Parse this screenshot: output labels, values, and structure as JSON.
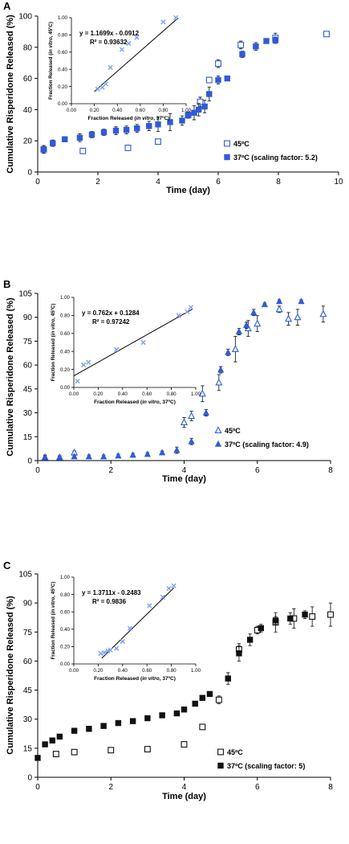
{
  "colors": {
    "blue": "#2f5bd9",
    "light_blue": "#7aa2ee",
    "black": "#111111",
    "gray": "#777777"
  },
  "chart_data": [
    {
      "panel_label": "A",
      "type": "scatter",
      "xlabel": "Time (day)",
      "ylabel": "Cumulative Risperidone Released (%)",
      "xlim": [
        0,
        10
      ],
      "ylim": [
        0,
        100
      ],
      "xticks": [
        0,
        2,
        4,
        6,
        8,
        10
      ],
      "yticks": [
        0,
        20,
        40,
        60,
        80,
        100
      ],
      "legend_position": "bottom-right",
      "series": [
        {
          "name": "45ºC",
          "style": "open-square",
          "color": "#2f5bd9",
          "x": [
            0.2,
            1.5,
            3.0,
            4.0,
            5.0,
            5.4,
            5.7,
            6.0,
            6.75,
            7.9,
            9.6
          ],
          "y": [
            14.5,
            13.5,
            15.5,
            19.5,
            36.5,
            45.0,
            59.0,
            69.5,
            81.5,
            86.0,
            88.5
          ],
          "err": [
            2.5,
            1.0,
            1.0,
            1.0,
            2.0,
            3.0,
            1.0,
            2.5,
            2.5,
            3.0,
            1.5
          ]
        },
        {
          "name": "37ºC (scaling factor: 5.2)",
          "style": "filled-square",
          "color": "#2f5bd9",
          "x": [
            0.2,
            0.5,
            0.9,
            1.4,
            1.8,
            2.2,
            2.6,
            2.95,
            3.3,
            3.7,
            4.0,
            4.4,
            4.8,
            5.0,
            5.2,
            5.35,
            5.55,
            5.7,
            6.0,
            6.3,
            6.8,
            7.25,
            7.6,
            7.9
          ],
          "y": [
            14.5,
            18.5,
            21.0,
            22.0,
            24.0,
            25.5,
            26.5,
            27.0,
            28.0,
            29.5,
            30.5,
            32.0,
            33.0,
            36.5,
            38.0,
            40.0,
            42.0,
            50.0,
            59.0,
            60.0,
            75.5,
            80.5,
            84.0,
            84.5
          ],
          "err": [
            2.5,
            2.0,
            1.5,
            2.5,
            2.0,
            2.0,
            2.5,
            2.5,
            2.5,
            3.0,
            4.5,
            5.5,
            3.0,
            2.0,
            4.5,
            4.0,
            4.0,
            4.5,
            2.5,
            1.5,
            2.0,
            2.5,
            1.0,
            2.0
          ]
        }
      ],
      "inset": {
        "type": "scatter",
        "xlabel_parts": [
          "Fraction Released (",
          "in vitro",
          ", 37ºC)"
        ],
        "ylabel_parts": [
          "Fraction Released (",
          "in vitro",
          ", 45ºC)"
        ],
        "xlim": [
          0,
          1
        ],
        "ylim": [
          0,
          1
        ],
        "xticks": [
          "0.00",
          "0.20",
          "0.40",
          "0.60",
          "0.80",
          "1.00"
        ],
        "yticks": [
          "0.00",
          "0.20",
          "0.40",
          "0.60",
          "0.80",
          "1.00"
        ],
        "equation": "y = 1.1699x - 0.0912",
        "r_squared": "R² = 0.93632",
        "slope": 1.1699,
        "intercept": -0.0912,
        "fit_x_range": [
          0.2,
          0.93
        ],
        "x": [
          0.23,
          0.27,
          0.3,
          0.34,
          0.44,
          0.5,
          0.57,
          0.8,
          0.91
        ],
        "y": [
          0.17,
          0.19,
          0.23,
          0.42,
          0.63,
          0.7,
          0.77,
          0.95,
          1.0
        ]
      }
    },
    {
      "panel_label": "B",
      "type": "scatter",
      "xlabel": "Time (day)",
      "ylabel": "Cumulative Risperidone Released (%)",
      "xlim": [
        0,
        8
      ],
      "ylim": [
        0,
        105
      ],
      "xticks": [
        0,
        2,
        4,
        6,
        8
      ],
      "yticks": [
        0,
        15,
        30,
        45,
        60,
        75,
        90,
        105
      ],
      "legend_position": "bottom-right",
      "series": [
        {
          "name": "45ºC",
          "style": "open-triangle",
          "color": "#2f5bd9",
          "x": [
            0.2,
            0.6,
            1.0,
            4.0,
            4.2,
            4.5,
            4.95,
            5.4,
            5.75,
            6.0,
            6.6,
            6.85,
            7.1,
            7.8
          ],
          "y": [
            2.0,
            2.0,
            5.0,
            24.0,
            28.0,
            42.0,
            49.0,
            70.0,
            83.0,
            86.0,
            95.0,
            89.0,
            90.0,
            92.0
          ],
          "err": [
            1.0,
            1.0,
            1.0,
            3.0,
            3.0,
            5.0,
            5.0,
            8.0,
            5.0,
            5.0,
            2.0,
            4.0,
            5.0,
            5.0
          ]
        },
        {
          "name": "37ºC (scaling factor: 4.9)",
          "style": "filled-triangle",
          "color": "#2f5bd9",
          "x": [
            0.2,
            0.6,
            1.0,
            1.4,
            1.8,
            2.2,
            2.6,
            3.0,
            3.4,
            3.8,
            4.2,
            4.6,
            5.0,
            5.2,
            5.5,
            5.7,
            5.9,
            6.2,
            6.6,
            7.2
          ],
          "y": [
            2.0,
            2.0,
            2.5,
            2.5,
            2.5,
            3.0,
            3.5,
            4.0,
            5.0,
            6.5,
            12.0,
            30.0,
            57.0,
            68.0,
            81.0,
            85.0,
            93.0,
            98.0,
            100.0,
            100.0
          ],
          "err": [
            1.5,
            1.0,
            1.0,
            1.0,
            1.0,
            1.0,
            1.0,
            1.0,
            1.0,
            2.0,
            2.0,
            2.0,
            2.0,
            2.0,
            2.0,
            2.0,
            2.0,
            1.0,
            1.0,
            1.0
          ]
        }
      ],
      "inset": {
        "type": "scatter",
        "xlabel_parts": [
          "Fraction Released (",
          "in vitro",
          ", 37ºC)"
        ],
        "ylabel_parts": [
          "Fraction Released (",
          "in vitro",
          ", 45ºC)"
        ],
        "xlim": [
          0,
          1
        ],
        "ylim": [
          0,
          1
        ],
        "xticks": [
          "0.00",
          "0.20",
          "0.40",
          "0.60",
          "0.80",
          "1.00"
        ],
        "yticks": [
          "0.00",
          "0.20",
          "0.40",
          "0.60",
          "0.80",
          "1.00"
        ],
        "equation": "y = 0.762x + 0.1284",
        "r_squared": "R² = 0.97242",
        "slope": 0.762,
        "intercept": 0.1284,
        "fit_x_range": [
          0.0,
          0.97
        ],
        "x": [
          0.03,
          0.08,
          0.12,
          0.35,
          0.57,
          0.86,
          0.93,
          0.96
        ],
        "y": [
          0.07,
          0.25,
          0.28,
          0.42,
          0.5,
          0.8,
          0.84,
          0.89
        ]
      }
    },
    {
      "panel_label": "C",
      "type": "scatter",
      "xlabel": "Time (day)",
      "ylabel": "Cumulative Risperidone Released (%)",
      "xlim": [
        0,
        8
      ],
      "ylim": [
        0,
        105
      ],
      "xticks": [
        0,
        2,
        4,
        6,
        8
      ],
      "yticks": [
        0,
        15,
        30,
        45,
        60,
        75,
        90,
        105
      ],
      "legend_position": "bottom-right",
      "series": [
        {
          "name": "45ºC",
          "style": "open-square",
          "color": "#111111",
          "x": [
            0.5,
            1.0,
            2.0,
            3.0,
            4.0,
            4.5,
            4.95,
            5.5,
            6.0,
            6.5,
            7.0,
            7.5,
            8.0
          ],
          "y": [
            12.0,
            13.0,
            14.0,
            14.5,
            17.0,
            26.0,
            40.0,
            66.0,
            76.0,
            80.0,
            82.0,
            83.0,
            84.0
          ],
          "err": [
            1.0,
            1.0,
            1.0,
            1.0,
            1.0,
            1.0,
            2.0,
            3.0,
            2.0,
            5.0,
            5.0,
            5.0,
            6.0
          ]
        },
        {
          "name": "37ºC (scaling factor: 5)",
          "style": "filled-square",
          "color": "#111111",
          "x": [
            0.0,
            0.2,
            0.4,
            0.6,
            1.0,
            1.4,
            1.8,
            2.2,
            2.6,
            3.0,
            3.4,
            3.8,
            4.0,
            4.3,
            4.5,
            4.7,
            5.2,
            5.5,
            5.8,
            6.1,
            6.5,
            6.9,
            7.3
          ],
          "y": [
            10.0,
            17.0,
            19.0,
            21.0,
            24.0,
            25.0,
            26.5,
            28.0,
            29.0,
            30.5,
            32.0,
            33.0,
            35.0,
            38.0,
            41.0,
            43.0,
            51.0,
            64.0,
            71.0,
            77.0,
            81.0,
            82.0,
            84.0
          ],
          "err": [
            1.0,
            1.0,
            1.0,
            1.0,
            1.0,
            1.0,
            1.0,
            1.0,
            1.0,
            1.0,
            1.0,
            1.0,
            1.0,
            1.0,
            1.0,
            1.0,
            3.0,
            4.0,
            3.0,
            2.0,
            2.0,
            3.0,
            2.0
          ]
        }
      ],
      "inset": {
        "type": "scatter",
        "xlabel_parts": [
          "Fraction Released (",
          "in vitro",
          ", 37ºC)"
        ],
        "ylabel_parts": [
          "Fraction Released (",
          "in vitro",
          ", 45ºC)"
        ],
        "xlim": [
          0,
          1
        ],
        "ylim": [
          0,
          1
        ],
        "xticks": [
          "0.00",
          "0.20",
          "0.40",
          "0.60",
          "0.80",
          "1.00"
        ],
        "yticks": [
          "0.00",
          "0.20",
          "0.40",
          "0.60",
          "0.80",
          "1.00"
        ],
        "equation": "y = 1.3711x - 0.2483",
        "r_squared": "R² = 0.9836",
        "slope": 1.3711,
        "intercept": -0.2483,
        "fit_x_range": [
          0.23,
          0.82
        ],
        "x": [
          0.22,
          0.25,
          0.28,
          0.3,
          0.35,
          0.4,
          0.46,
          0.62,
          0.73,
          0.78,
          0.82
        ],
        "y": [
          0.12,
          0.13,
          0.15,
          0.16,
          0.18,
          0.26,
          0.41,
          0.67,
          0.77,
          0.87,
          0.9
        ]
      }
    }
  ]
}
